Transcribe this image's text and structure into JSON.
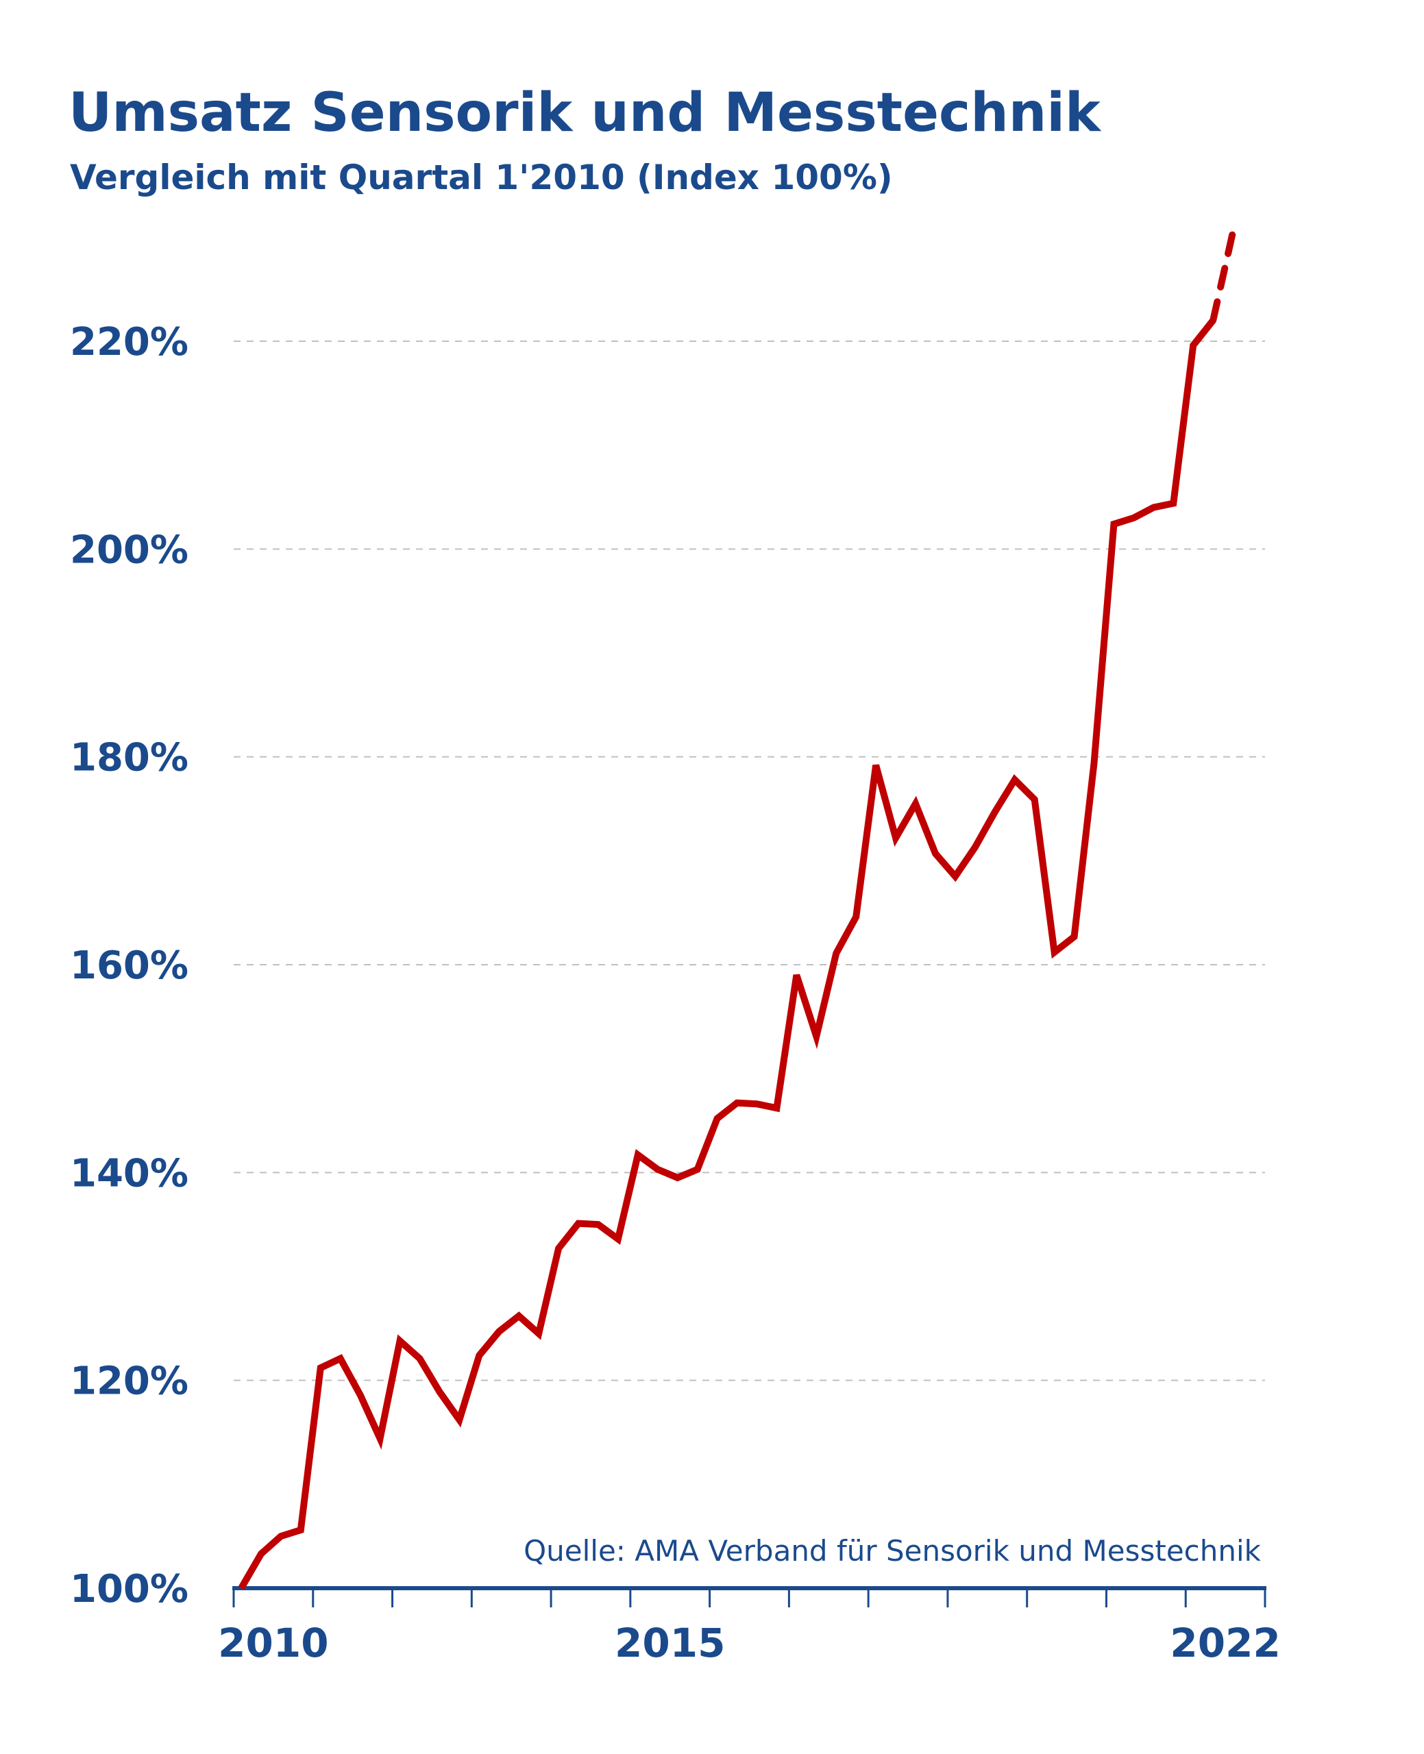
{
  "chart_data": {
    "type": "line",
    "title": "Umsatz Sensorik und Messtechnik",
    "subtitle": "Vergleich mit Quartal 1'2010 (Index 100%)",
    "source": "Quelle: AMA Verband für Sensorik und Messtechnik",
    "xlabel": "",
    "ylabel": "",
    "x_tick_labels": [
      "2010",
      "2015",
      "2022"
    ],
    "y_tick_labels": [
      "100%",
      "120%",
      "140%",
      "160%",
      "180%",
      "200%",
      "220%"
    ],
    "y_ticks": [
      100,
      120,
      140,
      160,
      180,
      200,
      220
    ],
    "ylim": [
      100,
      230
    ],
    "xlim": [
      2010,
      2022.75
    ],
    "x_unit": "quarter, 2010 Q1 to 2022 Q3",
    "grid": "horizontal dashed",
    "colors": {
      "line": "#c00000",
      "text": "#1b4a8c",
      "grid": "#c0c0c0"
    },
    "series": [
      {
        "values": [
          100,
          103.3,
          105.0,
          105.6,
          121.2,
          122.1,
          118.6,
          114.4,
          123.8,
          122.1,
          118.9,
          116.2,
          122.4,
          124.7,
          126.2,
          124.5,
          132.7,
          135.1,
          135.0,
          133.6,
          141.7,
          140.3,
          139.5,
          140.3,
          145.2,
          146.7,
          146.6,
          146.2,
          159.0,
          153.1,
          161.1,
          164.6,
          179.2,
          172.2,
          175.5,
          170.7,
          168.5,
          171.3,
          174.7,
          177.8,
          175.9,
          161.2,
          162.7,
          179.4,
          202.4,
          203.0,
          204.0,
          204.4,
          219.6,
          222.0,
          230.5
        ],
        "dashed_last_segment": true
      }
    ]
  }
}
